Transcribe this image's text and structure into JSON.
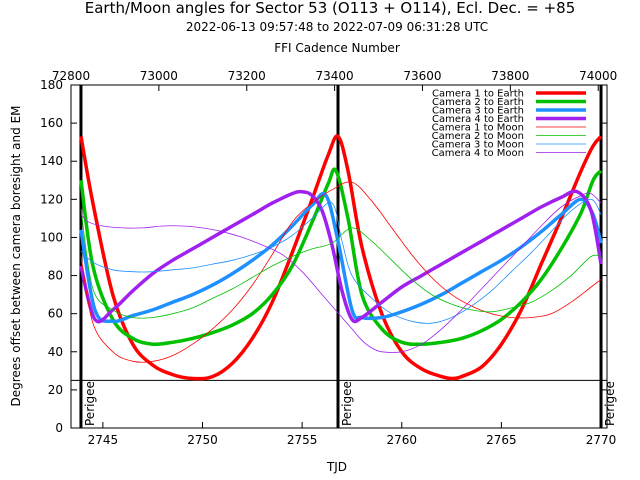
{
  "chart_data": {
    "type": "line",
    "title": "Earth/Moon angles for Sector 53 (O113 + O114), Ecl. Dec. = +85",
    "subtitle": "2022-06-13 09:57:48 to 2022-07-09 06:31:28 UTC",
    "top_axis_label": "FFI Cadence Number",
    "xlabel": "TJD",
    "ylabel": "Degrees offset between camera boresight and EM",
    "xlim": [
      2743.4,
      2770.3
    ],
    "ylim": [
      0,
      180
    ],
    "top_xlim": [
      72800,
      74020
    ],
    "x_ticks": [
      2745,
      2750,
      2755,
      2760,
      2765,
      2770
    ],
    "y_ticks": [
      0,
      20,
      40,
      60,
      80,
      100,
      120,
      140,
      160,
      180
    ],
    "top_ticks": [
      72800,
      73000,
      73200,
      73400,
      73600,
      73800,
      74000
    ],
    "threshold_line": 25,
    "grid": false,
    "legend_position": "top-right",
    "perigee_label": "Perigee",
    "perigees": [
      2743.9,
      2756.8,
      2770.0
    ],
    "series": [
      {
        "name": "Camera 1 to Earth",
        "color": "#ff0000",
        "width": 3.5,
        "x": [
          2743.9,
          2744.5,
          2745.5,
          2746.5,
          2747.5,
          2748.5,
          2749.5,
          2750.5,
          2751.5,
          2752.5,
          2753.5,
          2754.5,
          2755.5,
          2756.3,
          2756.8,
          2757.3,
          2758.0,
          2759.0,
          2760.0,
          2761.0,
          2762.0,
          2762.5,
          2763.0,
          2764.0,
          2765.0,
          2766.0,
          2767.0,
          2768.0,
          2769.0,
          2769.6,
          2770.0
        ],
        "y": [
          153,
          118,
          70,
          44,
          33,
          28,
          26,
          27,
          34,
          47,
          66,
          92,
          120,
          143,
          153,
          135,
          95,
          60,
          40,
          31,
          27,
          26,
          27,
          32,
          44,
          62,
          86,
          110,
          135,
          148,
          153
        ]
      },
      {
        "name": "Camera 2 to Earth",
        "color": "#00c000",
        "width": 3.5,
        "x": [
          2743.9,
          2744.5,
          2745.5,
          2746.5,
          2747.5,
          2748.5,
          2749.5,
          2750.5,
          2751.5,
          2752.5,
          2753.5,
          2754.5,
          2755.5,
          2756.3,
          2756.7,
          2757.3,
          2758.0,
          2759.0,
          2760.0,
          2761.0,
          2762.0,
          2763.0,
          2764.0,
          2765.0,
          2766.0,
          2767.0,
          2768.0,
          2769.0,
          2769.6,
          2770.0
        ],
        "y": [
          130,
          85,
          57,
          47,
          44,
          45,
          47,
          50,
          54,
          60,
          70,
          85,
          108,
          128,
          135,
          110,
          70,
          52,
          45,
          44,
          45,
          47,
          51,
          57,
          66,
          78,
          94,
          113,
          130,
          135
        ]
      },
      {
        "name": "Camera 3 to Earth",
        "color": "#1e90ff",
        "width": 3.5,
        "x": [
          2743.9,
          2744.6,
          2745.5,
          2746.5,
          2747.5,
          2748.5,
          2749.5,
          2750.5,
          2751.5,
          2752.5,
          2753.5,
          2754.5,
          2755.5,
          2756.2,
          2756.8,
          2757.5,
          2758.0,
          2759.0,
          2760.0,
          2761.0,
          2762.0,
          2763.0,
          2764.0,
          2765.0,
          2766.0,
          2767.0,
          2768.0,
          2769.0,
          2769.6,
          2770.0
        ],
        "y": [
          104,
          62,
          56,
          59,
          62,
          66,
          70,
          75,
          81,
          88,
          96,
          106,
          117,
          122,
          98,
          62,
          58,
          58,
          61,
          65,
          70,
          76,
          82,
          88,
          95,
          103,
          112,
          120,
          112,
          97
        ]
      },
      {
        "name": "Camera 4 to Earth",
        "color": "#a020f0",
        "width": 3.5,
        "x": [
          2743.9,
          2744.6,
          2745.5,
          2746.5,
          2747.5,
          2748.5,
          2749.5,
          2750.5,
          2751.5,
          2752.5,
          2753.5,
          2754.5,
          2755.0,
          2755.5,
          2756.0,
          2756.5,
          2757.0,
          2757.5,
          2758.0,
          2759.0,
          2760.0,
          2761.0,
          2762.0,
          2763.0,
          2764.0,
          2765.0,
          2766.0,
          2767.0,
          2768.0,
          2768.8,
          2769.5,
          2770.0
        ],
        "y": [
          85,
          57,
          62,
          72,
          81,
          88,
          94,
          100,
          106,
          112,
          118,
          123,
          124,
          122,
          114,
          96,
          72,
          57,
          58,
          66,
          74,
          80,
          86,
          92,
          98,
          104,
          110,
          116,
          121,
          124,
          114,
          86
        ]
      },
      {
        "name": "Camera 1 to Moon",
        "color": "#ff0000",
        "width": 0.8,
        "x": [
          2743.9,
          2744.5,
          2745.5,
          2746.5,
          2747.5,
          2748.5,
          2749.5,
          2750.5,
          2751.5,
          2752.5,
          2753.5,
          2754.5,
          2755.5,
          2756.5,
          2757.5,
          2758.5,
          2759.5,
          2760.5,
          2761.5,
          2762.5,
          2763.5,
          2764.5,
          2765.5,
          2766.5,
          2767.5,
          2768.5,
          2769.5,
          2770.0
        ],
        "y": [
          90,
          55,
          40,
          35,
          35,
          38,
          44,
          52,
          62,
          75,
          91,
          108,
          118,
          125,
          129,
          119,
          105,
          91,
          79,
          70,
          64,
          60,
          58,
          58,
          60,
          66,
          74,
          78
        ]
      },
      {
        "name": "Camera 2 to Moon",
        "color": "#00c000",
        "width": 0.8,
        "x": [
          2743.9,
          2744.5,
          2745.5,
          2746.5,
          2747.5,
          2748.5,
          2749.5,
          2750.5,
          2751.5,
          2752.5,
          2753.5,
          2754.5,
          2755.5,
          2756.5,
          2757.5,
          2758.5,
          2759.5,
          2760.5,
          2761.5,
          2762.5,
          2763.5,
          2764.5,
          2765.5,
          2766.5,
          2767.5,
          2768.5,
          2769.5,
          2770.0
        ],
        "y": [
          115,
          73,
          62,
          58,
          58,
          60,
          63,
          68,
          73,
          79,
          85,
          90,
          94,
          97,
          105,
          98,
          88,
          78,
          70,
          65,
          62,
          61,
          63,
          66,
          72,
          80,
          90,
          90
        ]
      },
      {
        "name": "Camera 3 to Moon",
        "color": "#1e90ff",
        "width": 0.8,
        "x": [
          2743.9,
          2744.5,
          2745.5,
          2746.5,
          2747.5,
          2748.5,
          2749.5,
          2750.5,
          2751.5,
          2752.5,
          2753.5,
          2754.5,
          2755.5,
          2756.5,
          2757.0,
          2757.5,
          2758.5,
          2759.5,
          2760.5,
          2761.5,
          2762.5,
          2763.5,
          2764.5,
          2765.5,
          2766.5,
          2767.5,
          2768.5,
          2769.5,
          2770.0
        ],
        "y": [
          93,
          87,
          83,
          82,
          82,
          83,
          84,
          86,
          88,
          91,
          95,
          101,
          110,
          118,
          98,
          80,
          68,
          60,
          56,
          55,
          58,
          64,
          72,
          82,
          92,
          103,
          114,
          120,
          112
        ]
      },
      {
        "name": "Camera 4 to Moon",
        "color": "#a020f0",
        "width": 0.8,
        "x": [
          2743.9,
          2744.3,
          2745.0,
          2746.0,
          2747.0,
          2748.0,
          2749.0,
          2750.0,
          2751.0,
          2752.0,
          2753.0,
          2754.0,
          2755.0,
          2756.0,
          2756.5,
          2757.0,
          2757.5,
          2758.0,
          2758.5,
          2759.0,
          2760.0,
          2761.0,
          2762.0,
          2763.0,
          2764.0,
          2765.0,
          2766.0,
          2767.0,
          2768.0,
          2769.0,
          2769.5,
          2770.0
        ],
        "y": [
          112,
          108,
          106,
          105,
          105,
          106,
          106,
          105,
          103,
          100,
          96,
          91,
          82,
          70,
          64,
          58,
          52,
          46,
          42,
          40,
          40,
          44,
          52,
          62,
          73,
          84,
          95,
          106,
          116,
          122,
          123,
          118
        ]
      }
    ]
  }
}
